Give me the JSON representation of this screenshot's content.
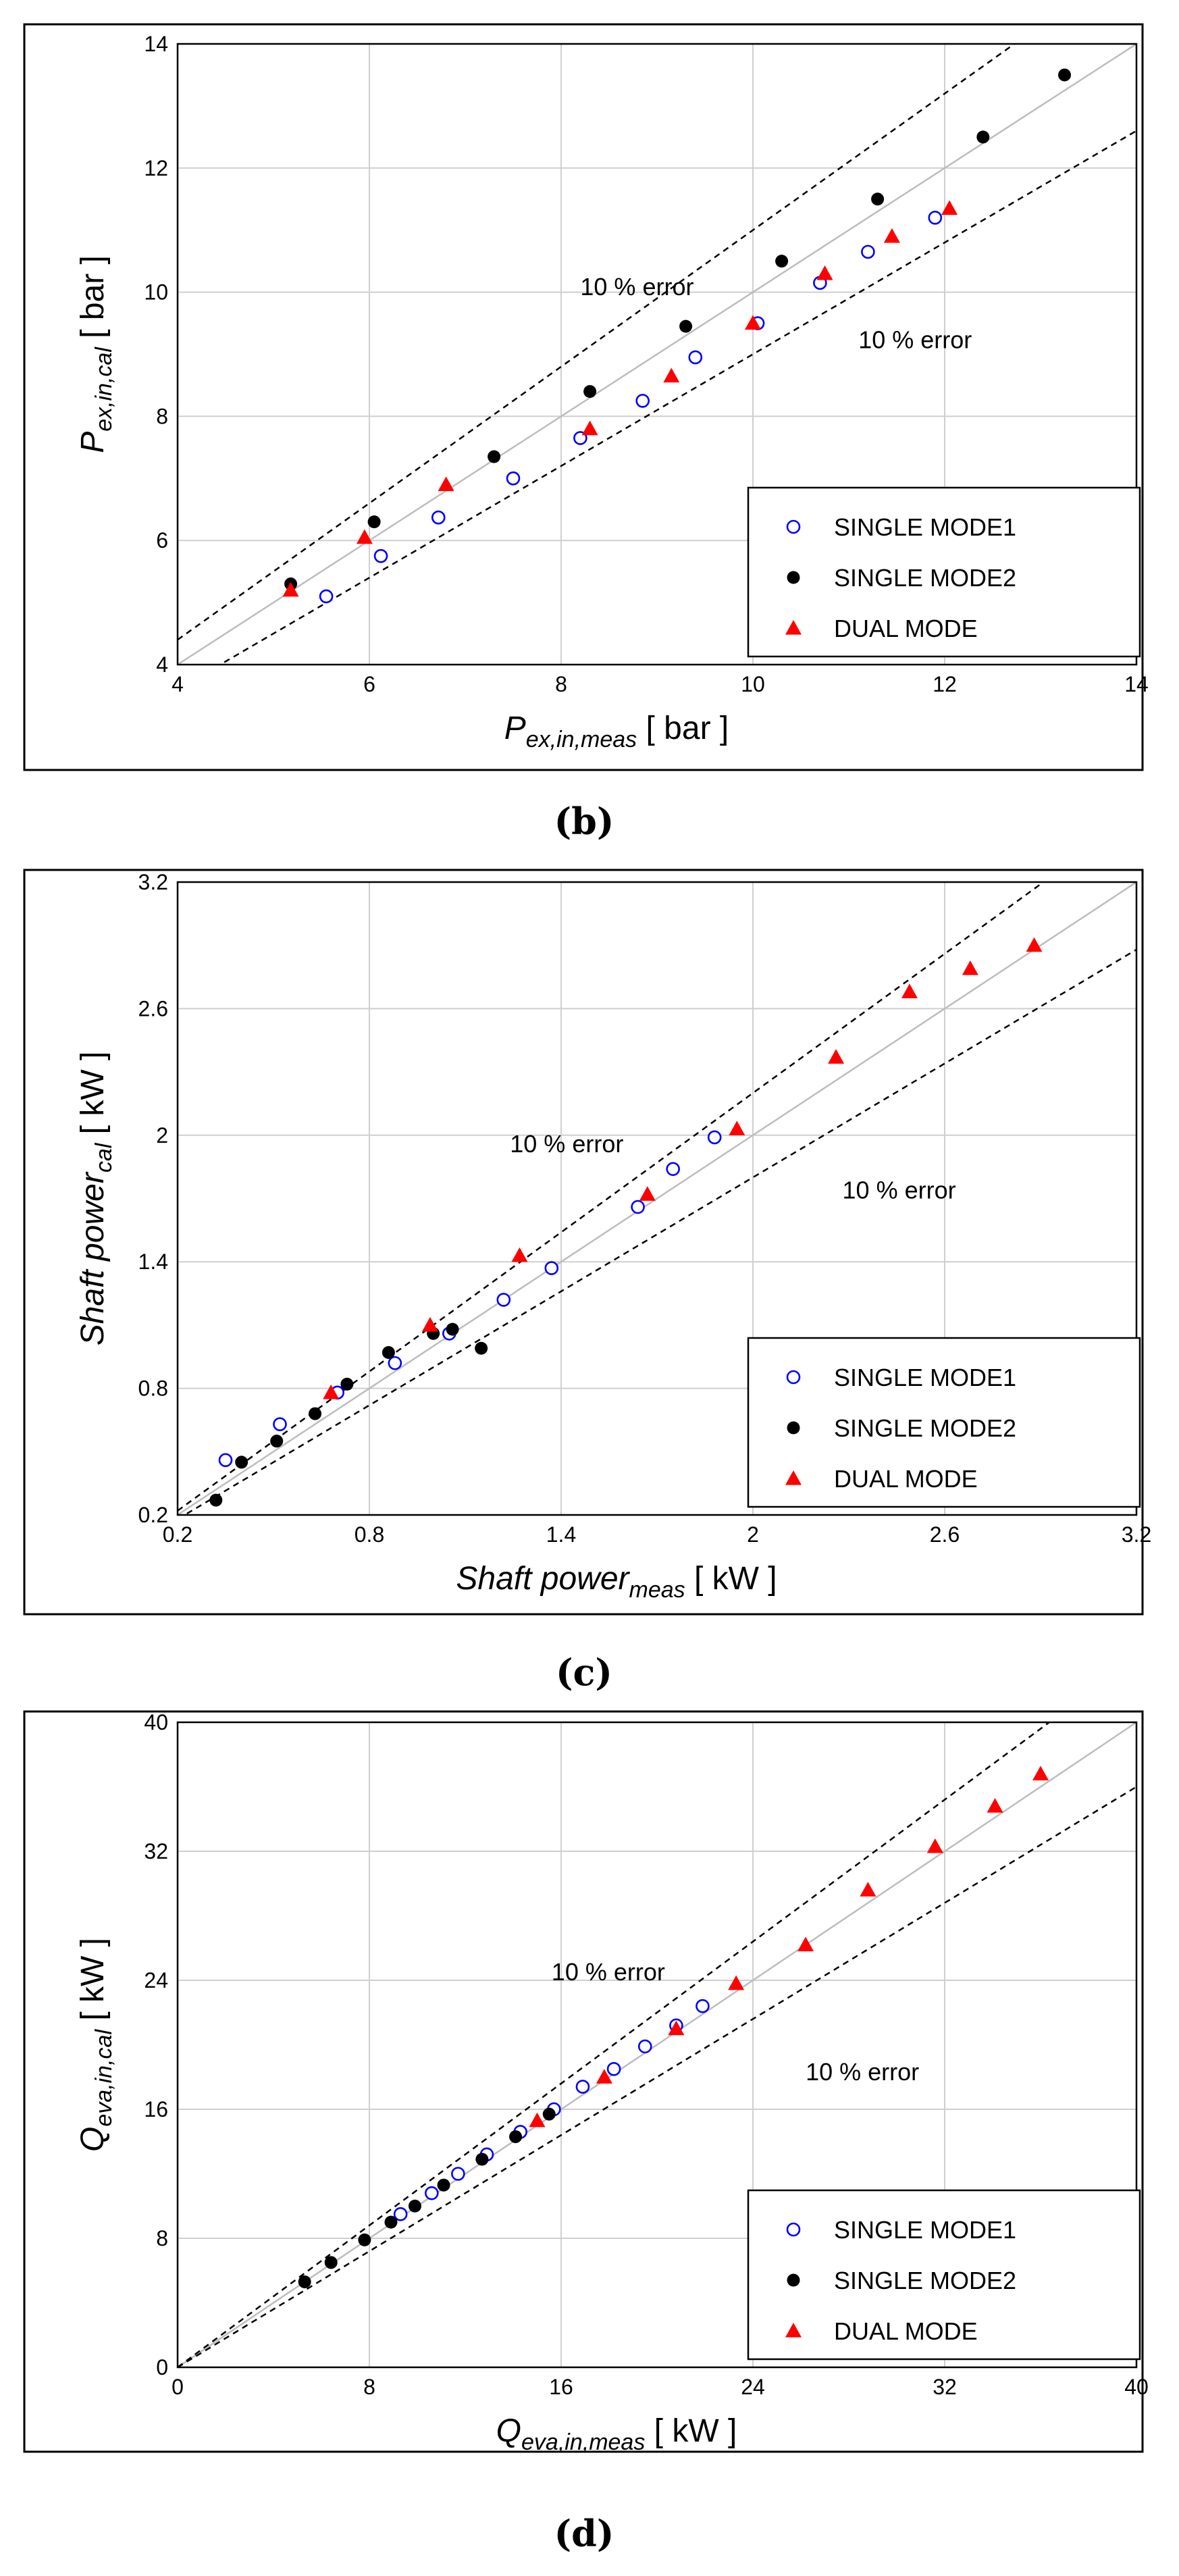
{
  "chart_data": [
    {
      "type": "scatter",
      "panel_label": "(b)",
      "title": "",
      "xlabel": {
        "main": "P",
        "sub": "ex,in,meas",
        "unit": " [ bar ]"
      },
      "ylabel": {
        "main": "P",
        "sub": "ex,in,cal",
        "unit": " [ bar ]"
      },
      "xlim": [
        4,
        14
      ],
      "ylim": [
        4,
        14
      ],
      "xticks": [
        4,
        6,
        8,
        10,
        12,
        14
      ],
      "yticks": [
        4,
        6,
        8,
        10,
        12,
        14
      ],
      "grid": true,
      "legend_position": "bottom-right",
      "series": [
        {
          "name": "SINGLE MODE1",
          "marker": "open-circle",
          "color": "#0000ff",
          "points": [
            [
              5.55,
              5.1
            ],
            [
              6.12,
              5.75
            ],
            [
              6.72,
              6.37
            ],
            [
              7.5,
              7.0
            ],
            [
              8.2,
              7.65
            ],
            [
              8.85,
              8.25
            ],
            [
              9.4,
              8.95
            ],
            [
              10.05,
              9.5
            ],
            [
              10.7,
              10.15
            ],
            [
              11.2,
              10.65
            ],
            [
              11.9,
              11.2
            ]
          ]
        },
        {
          "name": "SINGLE MODE2",
          "marker": "filled-circle",
          "color": "#000000",
          "points": [
            [
              5.18,
              5.3
            ],
            [
              6.05,
              6.3
            ],
            [
              7.3,
              7.35
            ],
            [
              8.3,
              8.4
            ],
            [
              9.3,
              9.45
            ],
            [
              10.3,
              10.5
            ],
            [
              11.3,
              11.5
            ],
            [
              12.4,
              12.5
            ],
            [
              13.25,
              13.5
            ]
          ]
        },
        {
          "name": "DUAL MODE",
          "marker": "triangle",
          "color": "#ff0000",
          "points": [
            [
              5.18,
              5.2
            ],
            [
              5.95,
              6.05
            ],
            [
              6.8,
              6.9
            ],
            [
              8.3,
              7.8
            ],
            [
              9.15,
              8.65
            ],
            [
              10.0,
              9.5
            ],
            [
              10.75,
              10.3
            ],
            [
              11.45,
              10.9
            ],
            [
              12.05,
              11.35
            ]
          ]
        }
      ],
      "annotations": [
        {
          "text": "10 % error",
          "x": 8.2,
          "y": 9.95
        },
        {
          "text": "10 % error",
          "x": 11.1,
          "y": 9.1
        }
      ]
    },
    {
      "type": "scatter",
      "panel_label": "(c)",
      "title": "",
      "xlabel": {
        "main": "Shaft power",
        "sub": "meas",
        "unit": " [ kW ]"
      },
      "ylabel": {
        "main": "Shaft power",
        "sub": "cal",
        "unit": " [ kW ]"
      },
      "xlim": [
        0.2,
        3.2
      ],
      "ylim": [
        0.2,
        3.2
      ],
      "xticks": [
        0.2,
        0.8,
        1.4,
        2,
        2.6,
        3.2
      ],
      "yticks": [
        0.2,
        0.8,
        1.4,
        2,
        2.6,
        3.2
      ],
      "grid": true,
      "legend_position": "bottom-right",
      "series": [
        {
          "name": "SINGLE MODE1",
          "marker": "open-circle",
          "color": "#0000ff",
          "points": [
            [
              0.35,
              0.46
            ],
            [
              0.52,
              0.63
            ],
            [
              0.7,
              0.78
            ],
            [
              0.88,
              0.92
            ],
            [
              1.05,
              1.06
            ],
            [
              1.22,
              1.22
            ],
            [
              1.37,
              1.37
            ],
            [
              1.64,
              1.66
            ],
            [
              1.75,
              1.84
            ],
            [
              1.88,
              1.99
            ]
          ]
        },
        {
          "name": "SINGLE MODE2",
          "marker": "filled-circle",
          "color": "#000000",
          "points": [
            [
              0.32,
              0.27
            ],
            [
              0.4,
              0.45
            ],
            [
              0.51,
              0.55
            ],
            [
              0.63,
              0.68
            ],
            [
              0.73,
              0.82
            ],
            [
              0.86,
              0.97
            ],
            [
              1.0,
              1.06
            ],
            [
              1.06,
              1.08
            ],
            [
              1.15,
              0.99
            ]
          ]
        },
        {
          "name": "DUAL MODE",
          "marker": "triangle",
          "color": "#ff0000",
          "points": [
            [
              0.68,
              0.78
            ],
            [
              0.99,
              1.1
            ],
            [
              1.27,
              1.43
            ],
            [
              1.67,
              1.72
            ],
            [
              1.95,
              2.03
            ],
            [
              2.26,
              2.37
            ],
            [
              2.49,
              2.68
            ],
            [
              2.68,
              2.79
            ],
            [
              2.88,
              2.9
            ]
          ]
        }
      ],
      "annotations": [
        {
          "text": "10 % error",
          "x": 1.24,
          "y": 1.92
        },
        {
          "text": "10 % error",
          "x": 2.28,
          "y": 1.7
        }
      ]
    },
    {
      "type": "scatter",
      "panel_label": "(d)",
      "title": "",
      "xlabel": {
        "main": "Q",
        "sub": "eva,in,meas",
        "unit": " [ kW ]"
      },
      "ylabel": {
        "main": "Q",
        "sub": "eva,in,cal",
        "unit": " [ kW ]"
      },
      "xlim": [
        0,
        40
      ],
      "ylim": [
        0,
        40
      ],
      "xticks": [
        0,
        8,
        16,
        24,
        32,
        40
      ],
      "yticks": [
        0,
        8,
        16,
        24,
        32,
        40
      ],
      "grid": true,
      "legend_position": "bottom-right",
      "series": [
        {
          "name": "SINGLE MODE1",
          "marker": "open-circle",
          "color": "#0000ff",
          "points": [
            [
              9.3,
              9.5
            ],
            [
              10.6,
              10.8
            ],
            [
              11.7,
              12.0
            ],
            [
              12.9,
              13.2
            ],
            [
              14.3,
              14.6
            ],
            [
              15.7,
              16.0
            ],
            [
              16.9,
              17.4
            ],
            [
              18.2,
              18.5
            ],
            [
              19.5,
              19.9
            ],
            [
              20.8,
              21.2
            ],
            [
              21.9,
              22.4
            ]
          ]
        },
        {
          "name": "SINGLE MODE2",
          "marker": "filled-circle",
          "color": "#000000",
          "points": [
            [
              5.3,
              5.3
            ],
            [
              6.4,
              6.5
            ],
            [
              7.8,
              7.9
            ],
            [
              8.9,
              9.0
            ],
            [
              9.9,
              10.0
            ],
            [
              11.1,
              11.3
            ],
            [
              12.7,
              12.9
            ],
            [
              14.1,
              14.3
            ],
            [
              15.5,
              15.7
            ]
          ]
        },
        {
          "name": "DUAL MODE",
          "marker": "triangle",
          "color": "#ff0000",
          "points": [
            [
              15.0,
              15.3
            ],
            [
              17.8,
              18.0
            ],
            [
              20.8,
              21.0
            ],
            [
              23.3,
              23.8
            ],
            [
              26.2,
              26.2
            ],
            [
              28.8,
              29.6
            ],
            [
              31.6,
              32.3
            ],
            [
              34.1,
              34.8
            ],
            [
              36.0,
              36.8
            ]
          ]
        }
      ],
      "annotations": [
        {
          "text": "10 % error",
          "x": 15.6,
          "y": 24.0
        },
        {
          "text": "10 % error",
          "x": 26.2,
          "y": 17.8
        }
      ]
    }
  ]
}
